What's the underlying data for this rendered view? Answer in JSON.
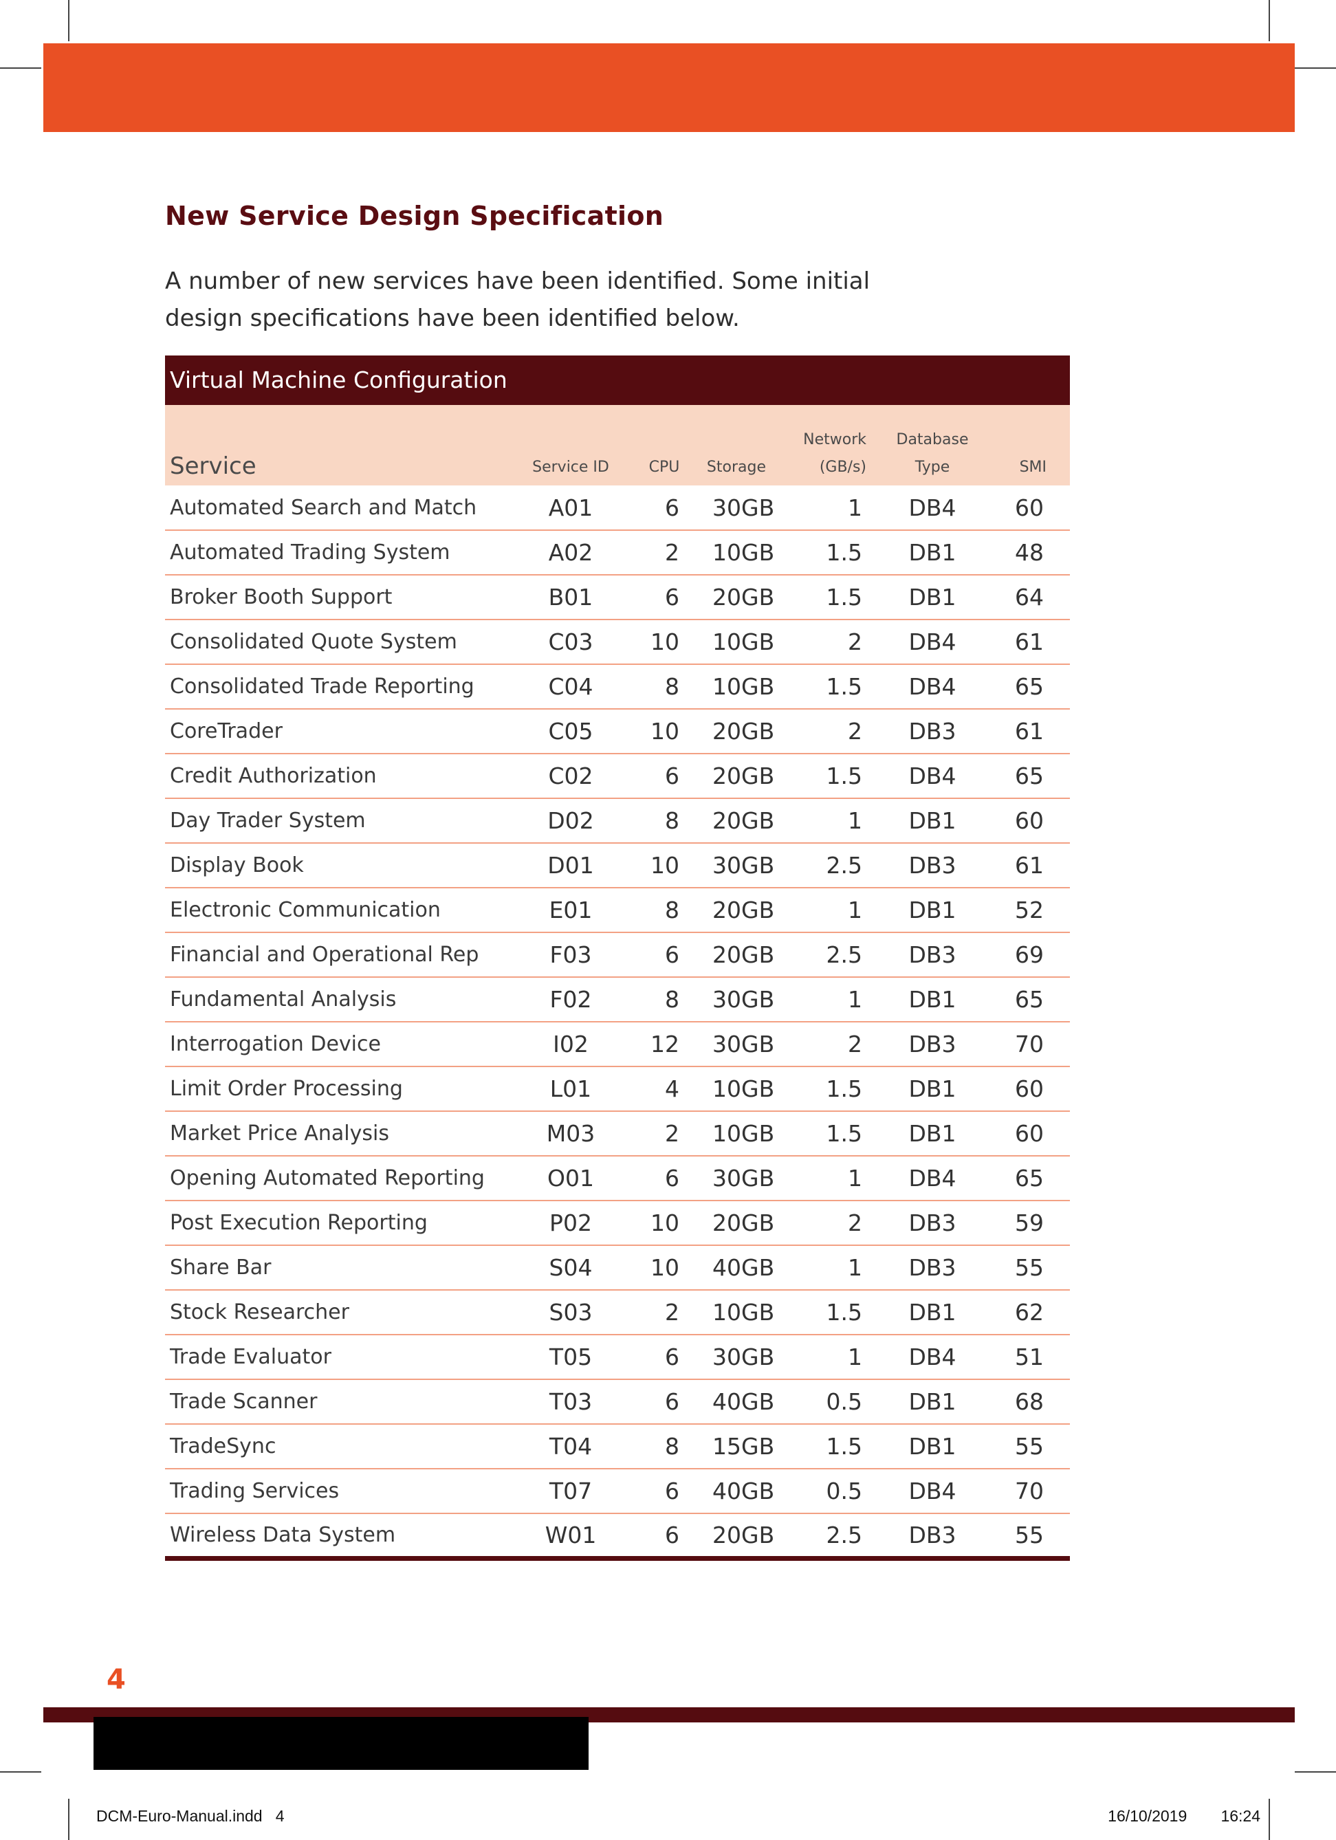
{
  "heading": "New Service Design Specification",
  "intro": "A number of new services have been identified. Some initial design specifications have been identified below.",
  "table": {
    "caption": "Virtual Machine Configuration",
    "headers": {
      "service": "Service",
      "service_id": "Service ID",
      "cpu": "CPU",
      "storage": "Storage",
      "network_line1": "Network",
      "network_line2": "(GB/s)",
      "database_line1": "Database",
      "database_line2": "Type",
      "smi": "SMI"
    },
    "rows": [
      {
        "service": "Automated Search and Match",
        "id": "A01",
        "cpu": "6",
        "storage": "30GB",
        "network": "1",
        "db": "DB4",
        "smi": "60"
      },
      {
        "service": "Automated Trading System",
        "id": "A02",
        "cpu": "2",
        "storage": "10GB",
        "network": "1.5",
        "db": "DB1",
        "smi": "48"
      },
      {
        "service": "Broker Booth Support",
        "id": "B01",
        "cpu": "6",
        "storage": "20GB",
        "network": "1.5",
        "db": "DB1",
        "smi": "64"
      },
      {
        "service": "Consolidated Quote System",
        "id": "C03",
        "cpu": "10",
        "storage": "10GB",
        "network": "2",
        "db": "DB4",
        "smi": "61"
      },
      {
        "service": "Consolidated Trade Reporting",
        "id": "C04",
        "cpu": "8",
        "storage": "10GB",
        "network": "1.5",
        "db": "DB4",
        "smi": "65"
      },
      {
        "service": "CoreTrader",
        "id": "C05",
        "cpu": "10",
        "storage": "20GB",
        "network": "2",
        "db": "DB3",
        "smi": "61"
      },
      {
        "service": "Credit Authorization",
        "id": "C02",
        "cpu": "6",
        "storage": "20GB",
        "network": "1.5",
        "db": "DB4",
        "smi": "65"
      },
      {
        "service": "Day Trader System",
        "id": "D02",
        "cpu": "8",
        "storage": "20GB",
        "network": "1",
        "db": "DB1",
        "smi": "60"
      },
      {
        "service": "Display Book",
        "id": "D01",
        "cpu": "10",
        "storage": "30GB",
        "network": "2.5",
        "db": "DB3",
        "smi": "61"
      },
      {
        "service": "Electronic Communication",
        "id": "E01",
        "cpu": "8",
        "storage": "20GB",
        "network": "1",
        "db": "DB1",
        "smi": "52"
      },
      {
        "service": "Financial and Operational Rep",
        "id": "F03",
        "cpu": "6",
        "storage": "20GB",
        "network": "2.5",
        "db": "DB3",
        "smi": "69"
      },
      {
        "service": "Fundamental Analysis",
        "id": "F02",
        "cpu": "8",
        "storage": "30GB",
        "network": "1",
        "db": "DB1",
        "smi": "65"
      },
      {
        "service": "Interrogation Device",
        "id": "I02",
        "cpu": "12",
        "storage": "30GB",
        "network": "2",
        "db": "DB3",
        "smi": "70"
      },
      {
        "service": "Limit Order Processing",
        "id": "L01",
        "cpu": "4",
        "storage": "10GB",
        "network": "1.5",
        "db": "DB1",
        "smi": "60"
      },
      {
        "service": "Market Price Analysis",
        "id": "M03",
        "cpu": "2",
        "storage": "10GB",
        "network": "1.5",
        "db": "DB1",
        "smi": "60"
      },
      {
        "service": "Opening Automated Reporting",
        "id": "O01",
        "cpu": "6",
        "storage": "30GB",
        "network": "1",
        "db": "DB4",
        "smi": "65"
      },
      {
        "service": "Post Execution Reporting",
        "id": "P02",
        "cpu": "10",
        "storage": "20GB",
        "network": "2",
        "db": "DB3",
        "smi": "59"
      },
      {
        "service": "Share Bar",
        "id": "S04",
        "cpu": "10",
        "storage": "40GB",
        "network": "1",
        "db": "DB3",
        "smi": "55"
      },
      {
        "service": "Stock Researcher",
        "id": "S03",
        "cpu": "2",
        "storage": "10GB",
        "network": "1.5",
        "db": "DB1",
        "smi": "62"
      },
      {
        "service": "Trade Evaluator",
        "id": "T05",
        "cpu": "6",
        "storage": "30GB",
        "network": "1",
        "db": "DB4",
        "smi": "51"
      },
      {
        "service": "Trade Scanner",
        "id": "T03",
        "cpu": "6",
        "storage": "40GB",
        "network": "0.5",
        "db": "DB1",
        "smi": "68"
      },
      {
        "service": "TradeSync",
        "id": "T04",
        "cpu": "8",
        "storage": "15GB",
        "network": "1.5",
        "db": "DB1",
        "smi": "55"
      },
      {
        "service": "Trading Services",
        "id": "T07",
        "cpu": "6",
        "storage": "40GB",
        "network": "0.5",
        "db": "DB4",
        "smi": "70"
      },
      {
        "service": "Wireless Data System",
        "id": "W01",
        "cpu": "6",
        "storage": "20GB",
        "network": "2.5",
        "db": "DB3",
        "smi": "55"
      }
    ]
  },
  "page_number": "4",
  "slug": {
    "filename": "DCM-Euro-Manual.indd   4",
    "datetime": "16/10/2019   16:24"
  },
  "colors": {
    "accent_orange": "#e95024",
    "maroon": "#550c10",
    "header_row_bg": "#f9d7c4",
    "row_divider": "#f3a184"
  }
}
